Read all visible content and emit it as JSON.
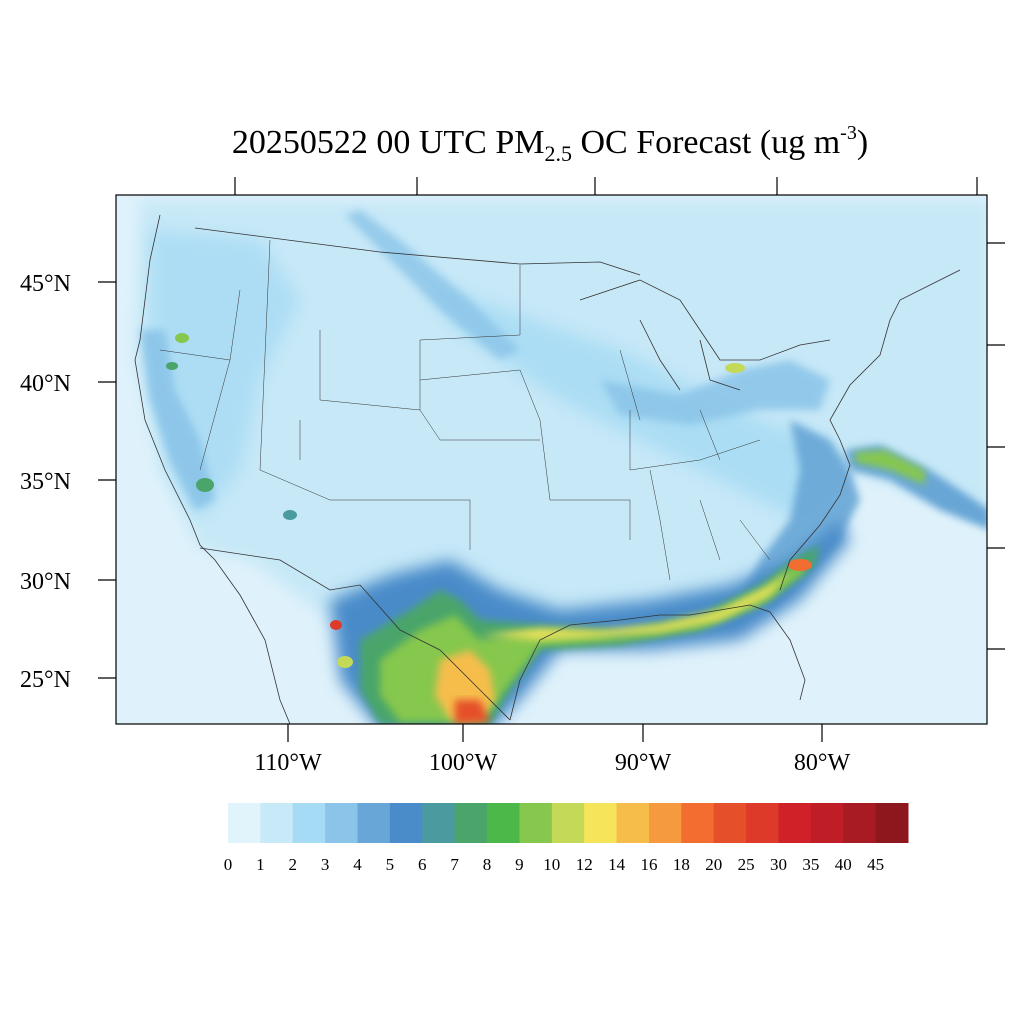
{
  "title": {
    "prefix": "20250522 00 UTC PM",
    "subscript": "2.5",
    "middle": " OC Forecast (ug m",
    "superscript": "-3",
    "suffix": ")"
  },
  "map": {
    "projection": "lambert-conformal",
    "region": "CONUS",
    "variable": "PM2.5 OC",
    "units": "ug m-3",
    "lat_labels": [
      "45°N",
      "40°N",
      "35°N",
      "30°N",
      "25°N"
    ],
    "lon_labels": [
      "110°W",
      "100°W",
      "90°W",
      "80°W"
    ],
    "hotspots": [
      {
        "name": "texas-mexico-plume",
        "level": 18
      },
      {
        "name": "gulf-coast-band",
        "level": 12
      },
      {
        "name": "atlantic-coast-band",
        "level": 12
      },
      {
        "name": "offshore-plume-east",
        "level": 14
      }
    ]
  },
  "colorbar": {
    "levels": [
      "0",
      "1",
      "2",
      "3",
      "4",
      "5",
      "6",
      "7",
      "8",
      "9",
      "10",
      "12",
      "14",
      "16",
      "18",
      "20",
      "25",
      "30",
      "35",
      "40",
      "45"
    ],
    "colors": [
      "#e1f3fb",
      "#c7e9f8",
      "#a6dbf5",
      "#8ac4e8",
      "#67a6d6",
      "#4a8bc9",
      "#4a9b9f",
      "#49a56a",
      "#4db84a",
      "#86c74e",
      "#c4d957",
      "#f6e55a",
      "#f6bd4b",
      "#f59a3e",
      "#f26d2f",
      "#e5502b",
      "#dd3a29",
      "#d02128",
      "#bf1e26",
      "#a91b22",
      "#8c171c"
    ]
  }
}
